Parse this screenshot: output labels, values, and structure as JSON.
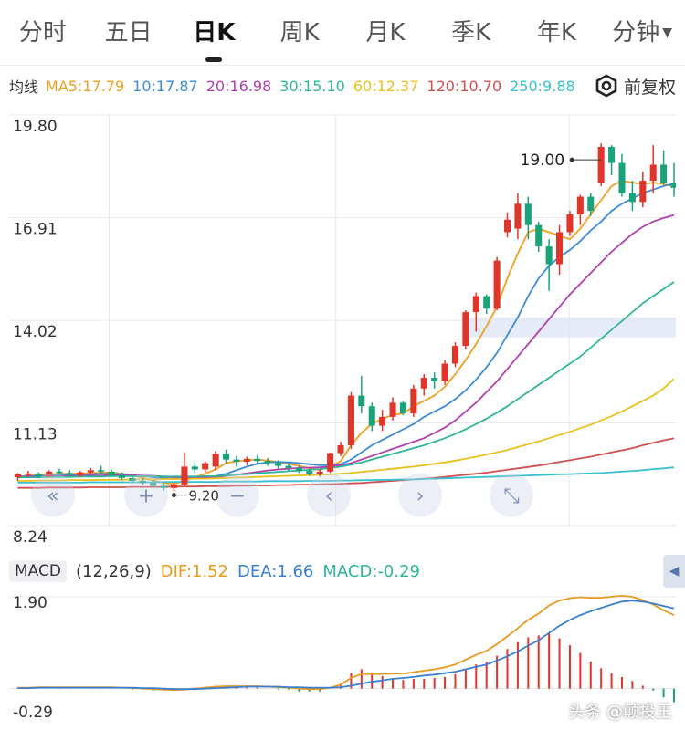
{
  "tabs": [
    "分时",
    "五日",
    "日K",
    "周K",
    "月K",
    "季K",
    "年K",
    "分钟"
  ],
  "active_tab": "日K",
  "ma_legend": {
    "label": "均线",
    "items": [
      {
        "text": "MA5:17.79",
        "color": "#f0a020"
      },
      {
        "text": "10:17.87",
        "color": "#3a8cd8"
      },
      {
        "text": "20:16.98",
        "color": "#b040b0"
      },
      {
        "text": "30:15.10",
        "color": "#2fb59a"
      },
      {
        "text": "60:12.37",
        "color": "#e8c020"
      },
      {
        "text": "120:10.70",
        "color": "#d05050"
      },
      {
        "text": "250:9.88",
        "color": "#38c0d0"
      }
    ]
  },
  "adjust_mode": "前复权",
  "price_axis_labels": [
    "19.80",
    "16.91",
    "14.02",
    "11.13",
    "8.24"
  ],
  "max_marker": "19.00",
  "min_marker": "9.20",
  "macd": {
    "tag": "MACD",
    "params": "(12,26,9)",
    "dif_text": "DIF:1.52",
    "dea_text": "DEA:1.66",
    "macd_text": "MACD:-0.29",
    "axis_labels": [
      "1.90",
      "-0.29"
    ]
  },
  "watermark": "头条 @颠投王",
  "colors": {
    "up": "#e0352b",
    "down": "#1aa37a",
    "grid": "#e8e8e8",
    "dif": "#e89a20",
    "dea": "#3a7fd0"
  },
  "chart_data": {
    "type": "candlestick",
    "ylim": [
      8.24,
      19.8
    ],
    "ohlc": [
      [
        9.6,
        9.72,
        9.5,
        9.68
      ],
      [
        9.68,
        9.78,
        9.6,
        9.7
      ],
      [
        9.7,
        9.74,
        9.58,
        9.62
      ],
      [
        9.62,
        9.8,
        9.6,
        9.76
      ],
      [
        9.76,
        9.84,
        9.66,
        9.72
      ],
      [
        9.72,
        9.8,
        9.62,
        9.66
      ],
      [
        9.66,
        9.78,
        9.6,
        9.74
      ],
      [
        9.74,
        9.86,
        9.68,
        9.8
      ],
      [
        9.8,
        9.92,
        9.7,
        9.76
      ],
      [
        9.76,
        9.82,
        9.62,
        9.66
      ],
      [
        9.66,
        9.74,
        9.52,
        9.58
      ],
      [
        9.58,
        9.66,
        9.44,
        9.5
      ],
      [
        9.5,
        9.58,
        9.38,
        9.44
      ],
      [
        9.44,
        9.52,
        9.3,
        9.36
      ],
      [
        9.36,
        9.46,
        9.22,
        9.3
      ],
      [
        9.3,
        9.44,
        9.2,
        9.4
      ],
      [
        9.4,
        10.3,
        9.36,
        9.9
      ],
      [
        9.9,
        10.02,
        9.72,
        9.82
      ],
      [
        9.82,
        10.05,
        9.74,
        10.0
      ],
      [
        9.9,
        10.34,
        9.8,
        10.26
      ],
      [
        10.26,
        10.38,
        10.0,
        10.1
      ],
      [
        10.1,
        10.2,
        9.9,
        10.04
      ],
      [
        10.04,
        10.18,
        9.94,
        10.12
      ],
      [
        10.12,
        10.22,
        9.98,
        10.06
      ],
      [
        10.06,
        10.14,
        9.92,
        10.0
      ],
      [
        10.0,
        10.08,
        9.84,
        9.92
      ],
      [
        9.92,
        10.0,
        9.78,
        9.86
      ],
      [
        9.86,
        9.94,
        9.72,
        9.78
      ],
      [
        9.78,
        9.84,
        9.64,
        9.7
      ],
      [
        9.7,
        9.82,
        9.62,
        9.76
      ],
      [
        9.76,
        10.3,
        9.72,
        10.28
      ],
      [
        10.28,
        10.6,
        10.2,
        10.5
      ],
      [
        10.5,
        12.0,
        10.4,
        11.9
      ],
      [
        11.9,
        12.45,
        11.4,
        11.6
      ],
      [
        11.6,
        11.7,
        10.9,
        11.05
      ],
      [
        11.05,
        11.5,
        10.9,
        11.3
      ],
      [
        11.3,
        11.85,
        11.2,
        11.7
      ],
      [
        11.7,
        11.75,
        11.35,
        11.4
      ],
      [
        11.4,
        12.2,
        11.3,
        12.1
      ],
      [
        12.1,
        12.5,
        11.9,
        12.4
      ],
      [
        12.4,
        12.55,
        12.1,
        12.3
      ],
      [
        12.3,
        12.9,
        12.2,
        12.8
      ],
      [
        12.8,
        13.4,
        12.7,
        13.3
      ],
      [
        13.3,
        14.3,
        13.2,
        14.25
      ],
      [
        14.25,
        14.8,
        13.7,
        14.7
      ],
      [
        14.7,
        14.75,
        14.2,
        14.35
      ],
      [
        14.35,
        15.8,
        14.3,
        15.7
      ],
      [
        16.5,
        17.05,
        16.35,
        16.85
      ],
      [
        16.6,
        17.6,
        16.3,
        17.3
      ],
      [
        17.3,
        17.5,
        16.3,
        16.7
      ],
      [
        16.7,
        16.8,
        15.95,
        16.1
      ],
      [
        16.1,
        16.3,
        14.85,
        15.6
      ],
      [
        15.6,
        16.7,
        15.3,
        16.5
      ],
      [
        16.5,
        17.1,
        16.4,
        17.0
      ],
      [
        17.0,
        17.55,
        16.7,
        17.5
      ],
      [
        17.5,
        17.6,
        16.95,
        17.1
      ],
      [
        17.9,
        19.0,
        17.8,
        18.9
      ],
      [
        18.9,
        18.95,
        18.1,
        18.45
      ],
      [
        18.45,
        18.7,
        17.5,
        17.6
      ],
      [
        17.6,
        17.95,
        17.1,
        17.35
      ],
      [
        17.35,
        18.2,
        17.2,
        17.95
      ],
      [
        17.95,
        18.95,
        17.6,
        18.4
      ],
      [
        18.4,
        18.8,
        17.85,
        17.9
      ],
      [
        17.9,
        18.45,
        17.5,
        17.75
      ]
    ],
    "ma_series": [
      {
        "name": "MA5",
        "color": "#f0a020",
        "values": [
          9.6,
          9.64,
          9.66,
          9.68,
          9.7,
          9.7,
          9.7,
          9.72,
          9.73,
          9.74,
          9.7,
          9.64,
          9.59,
          9.51,
          9.44,
          9.42,
          9.5,
          9.6,
          9.7,
          9.82,
          10.0,
          10.05,
          10.08,
          10.1,
          10.07,
          10.03,
          9.98,
          9.92,
          9.85,
          9.81,
          9.9,
          10.05,
          10.5,
          10.85,
          11.1,
          11.25,
          11.35,
          11.4,
          11.6,
          11.75,
          11.9,
          12.15,
          12.5,
          12.9,
          13.35,
          13.85,
          14.4,
          15.2,
          15.9,
          16.5,
          16.6,
          16.5,
          16.4,
          16.3,
          16.6,
          17.0,
          17.4,
          17.8,
          17.95,
          17.9,
          17.85,
          17.9,
          17.85,
          17.79
        ]
      },
      {
        "name": "MA10",
        "color": "#3a8cd8",
        "values": [
          9.62,
          9.63,
          9.64,
          9.65,
          9.66,
          9.67,
          9.68,
          9.69,
          9.7,
          9.7,
          9.69,
          9.67,
          9.64,
          9.6,
          9.57,
          9.55,
          9.55,
          9.57,
          9.6,
          9.63,
          9.7,
          9.8,
          9.9,
          9.98,
          10.02,
          10.03,
          10.02,
          10.0,
          9.97,
          9.94,
          9.94,
          9.97,
          10.1,
          10.3,
          10.5,
          10.65,
          10.8,
          10.95,
          11.1,
          11.3,
          11.45,
          11.6,
          11.8,
          12.05,
          12.35,
          12.7,
          13.1,
          13.6,
          14.1,
          14.7,
          15.2,
          15.55,
          15.8,
          16.0,
          16.25,
          16.55,
          16.8,
          17.1,
          17.3,
          17.45,
          17.6,
          17.7,
          17.8,
          17.87
        ]
      },
      {
        "name": "MA20",
        "color": "#b040b0",
        "values": [
          9.62,
          9.62,
          9.62,
          9.63,
          9.63,
          9.64,
          9.64,
          9.65,
          9.65,
          9.66,
          9.66,
          9.66,
          9.65,
          9.64,
          9.62,
          9.6,
          9.59,
          9.59,
          9.6,
          9.61,
          9.64,
          9.67,
          9.71,
          9.75,
          9.79,
          9.82,
          9.84,
          9.86,
          9.87,
          9.88,
          9.9,
          9.94,
          10.0,
          10.1,
          10.2,
          10.3,
          10.4,
          10.5,
          10.6,
          10.7,
          10.85,
          11.0,
          11.2,
          11.45,
          11.7,
          12.0,
          12.3,
          12.65,
          13.0,
          13.35,
          13.7,
          14.05,
          14.4,
          14.75,
          15.05,
          15.35,
          15.65,
          15.95,
          16.2,
          16.45,
          16.65,
          16.8,
          16.9,
          16.98
        ]
      },
      {
        "name": "MA30",
        "color": "#2fb59a",
        "values": [
          9.6,
          9.6,
          9.6,
          9.61,
          9.61,
          9.61,
          9.62,
          9.62,
          9.62,
          9.63,
          9.63,
          9.63,
          9.63,
          9.63,
          9.62,
          9.62,
          9.62,
          9.62,
          9.63,
          9.63,
          9.65,
          9.67,
          9.69,
          9.71,
          9.73,
          9.75,
          9.77,
          9.79,
          9.81,
          9.83,
          9.86,
          9.9,
          9.95,
          10.02,
          10.1,
          10.18,
          10.26,
          10.34,
          10.42,
          10.5,
          10.6,
          10.7,
          10.82,
          10.95,
          11.1,
          11.25,
          11.42,
          11.6,
          11.8,
          12.0,
          12.2,
          12.4,
          12.6,
          12.8,
          13.0,
          13.25,
          13.5,
          13.75,
          14.0,
          14.25,
          14.5,
          14.7,
          14.9,
          15.1
        ]
      },
      {
        "name": "MA60",
        "color": "#e8c020",
        "values": [
          9.5,
          9.5,
          9.51,
          9.51,
          9.51,
          9.52,
          9.52,
          9.52,
          9.53,
          9.53,
          9.53,
          9.54,
          9.54,
          9.54,
          9.55,
          9.55,
          9.55,
          9.56,
          9.56,
          9.57,
          9.58,
          9.59,
          9.6,
          9.61,
          9.62,
          9.63,
          9.64,
          9.65,
          9.66,
          9.67,
          9.68,
          9.7,
          9.72,
          9.75,
          9.78,
          9.81,
          9.84,
          9.87,
          9.9,
          9.94,
          9.98,
          10.02,
          10.07,
          10.12,
          10.18,
          10.24,
          10.3,
          10.37,
          10.45,
          10.53,
          10.61,
          10.7,
          10.79,
          10.88,
          10.98,
          11.08,
          11.2,
          11.32,
          11.45,
          11.6,
          11.75,
          11.9,
          12.1,
          12.37
        ]
      },
      {
        "name": "MA120",
        "color": "#d05050",
        "values": [
          9.3,
          9.3,
          9.3,
          9.31,
          9.31,
          9.31,
          9.31,
          9.32,
          9.32,
          9.32,
          9.32,
          9.33,
          9.33,
          9.33,
          9.33,
          9.34,
          9.34,
          9.34,
          9.35,
          9.35,
          9.35,
          9.36,
          9.36,
          9.37,
          9.37,
          9.38,
          9.38,
          9.39,
          9.39,
          9.4,
          9.41,
          9.42,
          9.43,
          9.44,
          9.46,
          9.48,
          9.5,
          9.52,
          9.54,
          9.56,
          9.58,
          9.61,
          9.64,
          9.67,
          9.7,
          9.73,
          9.77,
          9.81,
          9.85,
          9.89,
          9.93,
          9.98,
          10.03,
          10.08,
          10.13,
          10.18,
          10.24,
          10.3,
          10.36,
          10.42,
          10.5,
          10.57,
          10.64,
          10.7
        ]
      },
      {
        "name": "MA250",
        "color": "#38c0d0",
        "values": [
          9.45,
          9.45,
          9.45,
          9.45,
          9.45,
          9.45,
          9.45,
          9.46,
          9.46,
          9.46,
          9.46,
          9.46,
          9.46,
          9.46,
          9.47,
          9.47,
          9.47,
          9.47,
          9.47,
          9.47,
          9.48,
          9.48,
          9.48,
          9.48,
          9.49,
          9.49,
          9.49,
          9.49,
          9.5,
          9.5,
          9.5,
          9.51,
          9.51,
          9.52,
          9.52,
          9.53,
          9.53,
          9.54,
          9.54,
          9.55,
          9.56,
          9.57,
          9.58,
          9.59,
          9.6,
          9.61,
          9.62,
          9.63,
          9.64,
          9.65,
          9.66,
          9.67,
          9.68,
          9.69,
          9.7,
          9.71,
          9.72,
          9.74,
          9.76,
          9.78,
          9.8,
          9.83,
          9.85,
          9.88
        ]
      }
    ],
    "macd": {
      "ylim": [
        -0.29,
        1.9
      ],
      "dif": [
        0.02,
        0.02,
        0.03,
        0.03,
        0.03,
        0.03,
        0.03,
        0.03,
        0.03,
        0.03,
        0.02,
        0.01,
        0.0,
        -0.01,
        -0.02,
        -0.03,
        -0.02,
        0.0,
        0.02,
        0.04,
        0.05,
        0.05,
        0.05,
        0.05,
        0.04,
        0.03,
        0.02,
        0.0,
        -0.01,
        -0.01,
        0.02,
        0.08,
        0.22,
        0.3,
        0.3,
        0.3,
        0.31,
        0.31,
        0.34,
        0.37,
        0.4,
        0.44,
        0.5,
        0.6,
        0.7,
        0.78,
        0.92,
        1.08,
        1.25,
        1.42,
        1.55,
        1.72,
        1.82,
        1.87,
        1.89,
        1.88,
        1.88,
        1.9,
        1.92,
        1.9,
        1.83,
        1.74,
        1.62,
        1.52
      ],
      "dea": [
        0.01,
        0.01,
        0.02,
        0.02,
        0.02,
        0.02,
        0.02,
        0.02,
        0.02,
        0.02,
        0.02,
        0.02,
        0.01,
        0.01,
        0.0,
        -0.01,
        -0.01,
        -0.01,
        0.0,
        0.01,
        0.02,
        0.03,
        0.04,
        0.04,
        0.04,
        0.04,
        0.03,
        0.03,
        0.02,
        0.02,
        0.02,
        0.03,
        0.06,
        0.1,
        0.14,
        0.17,
        0.2,
        0.22,
        0.24,
        0.27,
        0.29,
        0.32,
        0.35,
        0.4,
        0.45,
        0.5,
        0.58,
        0.67,
        0.77,
        0.89,
        1.0,
        1.15,
        1.3,
        1.42,
        1.52,
        1.6,
        1.67,
        1.74,
        1.8,
        1.82,
        1.8,
        1.76,
        1.71,
        1.66
      ]
    }
  }
}
